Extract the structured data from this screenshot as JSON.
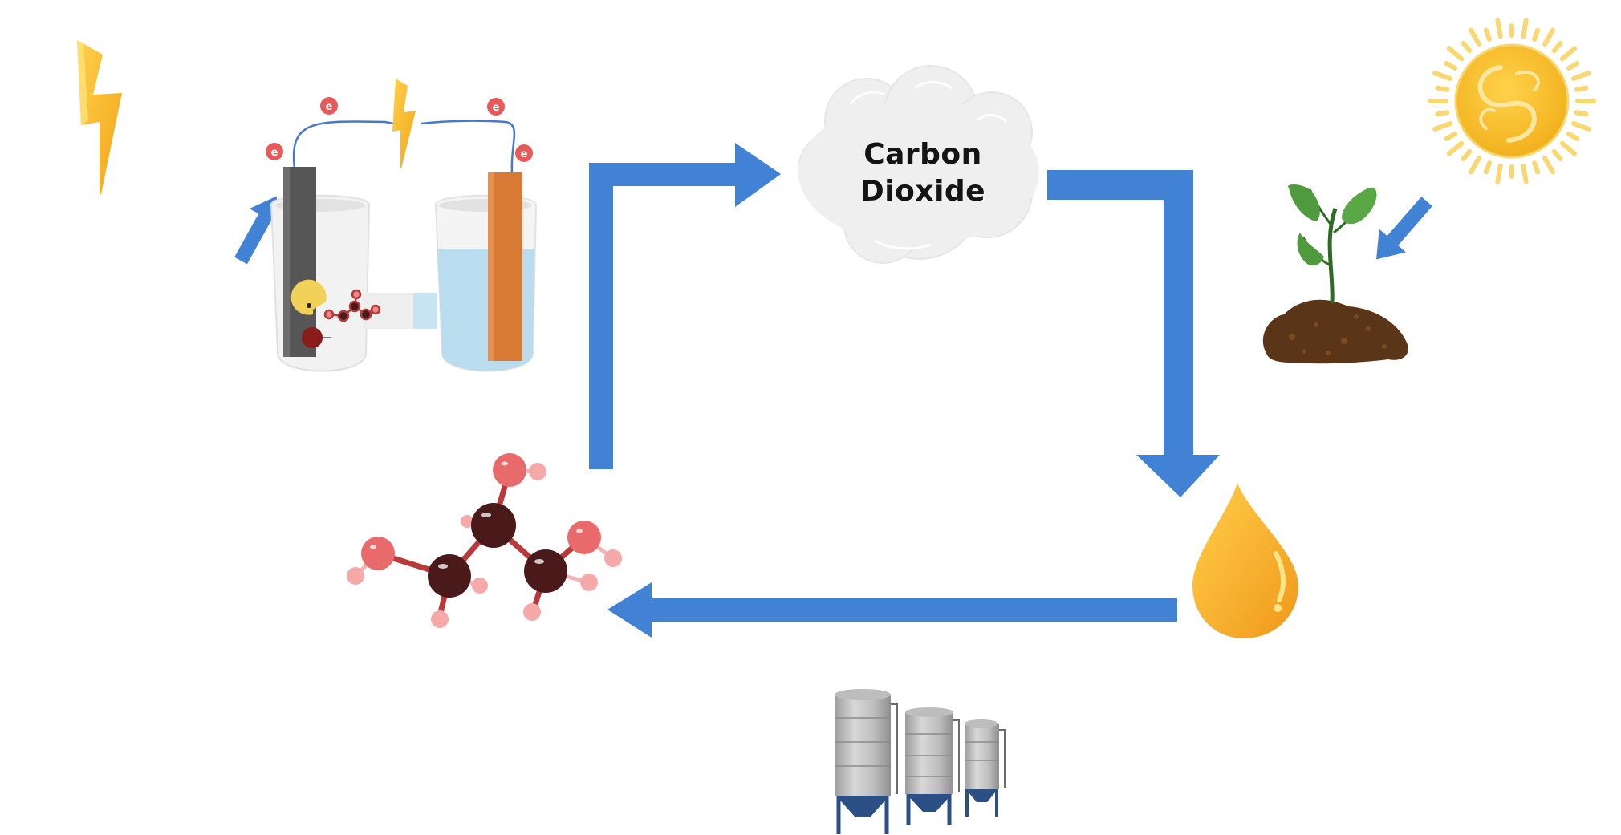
{
  "diagram": {
    "title": "",
    "cloud": {
      "line1": "Carbon",
      "line2": "Dioxide"
    },
    "electron_symbol": "e",
    "nodes": [
      {
        "id": "lightning",
        "icon": "lightning-bolt-icon"
      },
      {
        "id": "electrochemical-cell",
        "icon": "electrolysis-cell-icon"
      },
      {
        "id": "carbon-dioxide",
        "icon": "cloud-icon"
      },
      {
        "id": "sun",
        "icon": "sun-icon"
      },
      {
        "id": "plant",
        "icon": "sprout-in-soil-icon"
      },
      {
        "id": "oil-drop",
        "icon": "oil-drop-icon"
      },
      {
        "id": "glycerol-molecule",
        "icon": "molecule-icon"
      },
      {
        "id": "storage-silos",
        "icon": "silo-tanks-icon"
      }
    ],
    "colors": {
      "arrow": "#4282d4",
      "lightning": "#f5b82a",
      "sun": "#f5b82a",
      "oil": "#f2a521",
      "molecule_carbon": "#4a1a1a",
      "molecule_oxygen": "#e86a6a",
      "molecule_hydrogen": "#f6a9a9",
      "anode": "#555555",
      "cathode": "#d87a33",
      "electrolyte": "#b9dcef",
      "leaf": "#4e9a3d",
      "soil": "#5b3517",
      "cloud": "#efefef"
    }
  }
}
